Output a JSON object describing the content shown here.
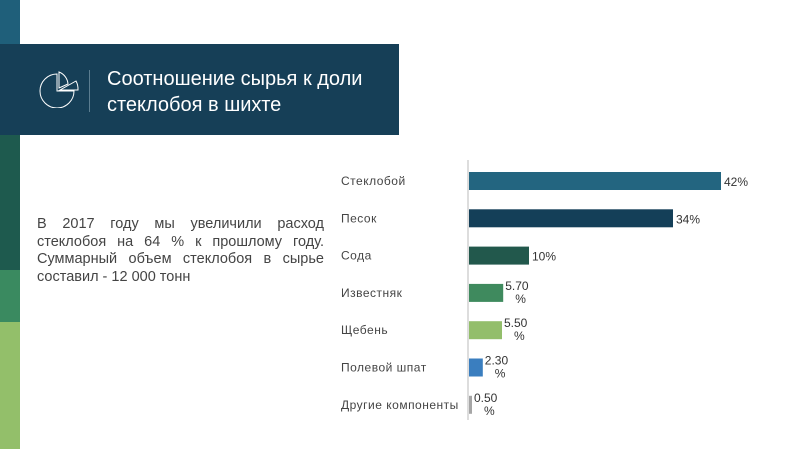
{
  "slide": {
    "title": "Соотношение сырья к доли стеклобоя в шихте",
    "title_icon": "pie-chart-icon",
    "body": "В 2017 году мы увеличили расход стеклобоя на 64 % к прошлому году. Суммарный объем стеклобоя в сырье составил - 12 000 тонн",
    "colors": {
      "title_bg": "#163f57",
      "stripe_top": "#1f5f7a",
      "stripe_mid": "#1e5a4e",
      "stripe_green": "#3a8a60",
      "stripe_light": "#93bf6a"
    }
  },
  "chart_data": {
    "type": "bar",
    "orientation": "horizontal",
    "categories": [
      "Стеклобой",
      "Песок",
      "Сода",
      "Известняк",
      "Щебень",
      "Полевой шпат",
      "Другие компоненты"
    ],
    "values": [
      42,
      34,
      10,
      5.7,
      5.5,
      2.3,
      0.5
    ],
    "data_labels": [
      "42%",
      "34%",
      "10%",
      "5.70 %",
      "5.50 %",
      "2.30 %",
      "0.50 %"
    ],
    "colors": [
      "#236580",
      "#143f58",
      "#22584c",
      "#3f8a5e",
      "#93be6b",
      "#3a7ebf",
      "#a6a6a6"
    ],
    "unit": "%",
    "grid": false
  }
}
